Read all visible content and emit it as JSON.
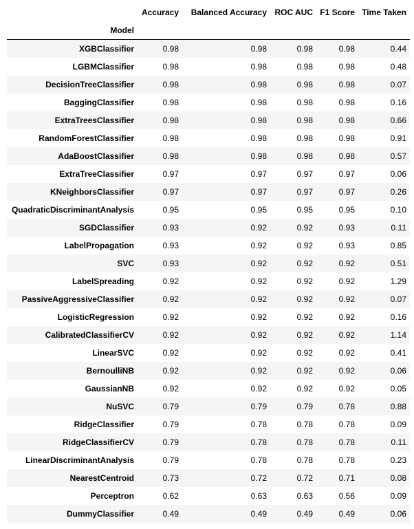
{
  "table": {
    "index_name": "Model",
    "columns": [
      "Accuracy",
      "Balanced Accuracy",
      "ROC AUC",
      "F1 Score",
      "Time Taken"
    ],
    "rows": [
      {
        "model": "XGBClassifier",
        "values": [
          "0.98",
          "0.98",
          "0.98",
          "0.98",
          "0.44"
        ]
      },
      {
        "model": "LGBMClassifier",
        "values": [
          "0.98",
          "0.98",
          "0.98",
          "0.98",
          "0.48"
        ]
      },
      {
        "model": "DecisionTreeClassifier",
        "values": [
          "0.98",
          "0.98",
          "0.98",
          "0.98",
          "0.07"
        ]
      },
      {
        "model": "BaggingClassifier",
        "values": [
          "0.98",
          "0.98",
          "0.98",
          "0.98",
          "0.16"
        ]
      },
      {
        "model": "ExtraTreesClassifier",
        "values": [
          "0.98",
          "0.98",
          "0.98",
          "0.98",
          "0.66"
        ]
      },
      {
        "model": "RandomForestClassifier",
        "values": [
          "0.98",
          "0.98",
          "0.98",
          "0.98",
          "0.91"
        ]
      },
      {
        "model": "AdaBoostClassifier",
        "values": [
          "0.98",
          "0.98",
          "0.98",
          "0.98",
          "0.57"
        ]
      },
      {
        "model": "ExtraTreeClassifier",
        "values": [
          "0.97",
          "0.97",
          "0.97",
          "0.97",
          "0.06"
        ]
      },
      {
        "model": "KNeighborsClassifier",
        "values": [
          "0.97",
          "0.97",
          "0.97",
          "0.97",
          "0.26"
        ]
      },
      {
        "model": "QuadraticDiscriminantAnalysis",
        "values": [
          "0.95",
          "0.95",
          "0.95",
          "0.95",
          "0.10"
        ]
      },
      {
        "model": "SGDClassifier",
        "values": [
          "0.93",
          "0.92",
          "0.92",
          "0.93",
          "0.11"
        ]
      },
      {
        "model": "LabelPropagation",
        "values": [
          "0.93",
          "0.92",
          "0.92",
          "0.93",
          "0.85"
        ]
      },
      {
        "model": "SVC",
        "values": [
          "0.93",
          "0.92",
          "0.92",
          "0.92",
          "0.51"
        ]
      },
      {
        "model": "LabelSpreading",
        "values": [
          "0.92",
          "0.92",
          "0.92",
          "0.92",
          "1.29"
        ]
      },
      {
        "model": "PassiveAggressiveClassifier",
        "values": [
          "0.92",
          "0.92",
          "0.92",
          "0.92",
          "0.07"
        ]
      },
      {
        "model": "LogisticRegression",
        "values": [
          "0.92",
          "0.92",
          "0.92",
          "0.92",
          "0.16"
        ]
      },
      {
        "model": "CalibratedClassifierCV",
        "values": [
          "0.92",
          "0.92",
          "0.92",
          "0.92",
          "1.14"
        ]
      },
      {
        "model": "LinearSVC",
        "values": [
          "0.92",
          "0.92",
          "0.92",
          "0.92",
          "0.41"
        ]
      },
      {
        "model": "BernoulliNB",
        "values": [
          "0.92",
          "0.92",
          "0.92",
          "0.92",
          "0.06"
        ]
      },
      {
        "model": "GaussianNB",
        "values": [
          "0.92",
          "0.92",
          "0.92",
          "0.92",
          "0.05"
        ]
      },
      {
        "model": "NuSVC",
        "values": [
          "0.79",
          "0.79",
          "0.79",
          "0.78",
          "0.88"
        ]
      },
      {
        "model": "RidgeClassifier",
        "values": [
          "0.79",
          "0.78",
          "0.78",
          "0.78",
          "0.09"
        ]
      },
      {
        "model": "RidgeClassifierCV",
        "values": [
          "0.79",
          "0.78",
          "0.78",
          "0.78",
          "0.11"
        ]
      },
      {
        "model": "LinearDiscriminantAnalysis",
        "values": [
          "0.79",
          "0.78",
          "0.78",
          "0.78",
          "0.23"
        ]
      },
      {
        "model": "NearestCentroid",
        "values": [
          "0.73",
          "0.72",
          "0.72",
          "0.71",
          "0.08"
        ]
      },
      {
        "model": "Perceptron",
        "values": [
          "0.62",
          "0.63",
          "0.63",
          "0.56",
          "0.09"
        ]
      },
      {
        "model": "DummyClassifier",
        "values": [
          "0.49",
          "0.49",
          "0.49",
          "0.49",
          "0.06"
        ]
      }
    ]
  }
}
